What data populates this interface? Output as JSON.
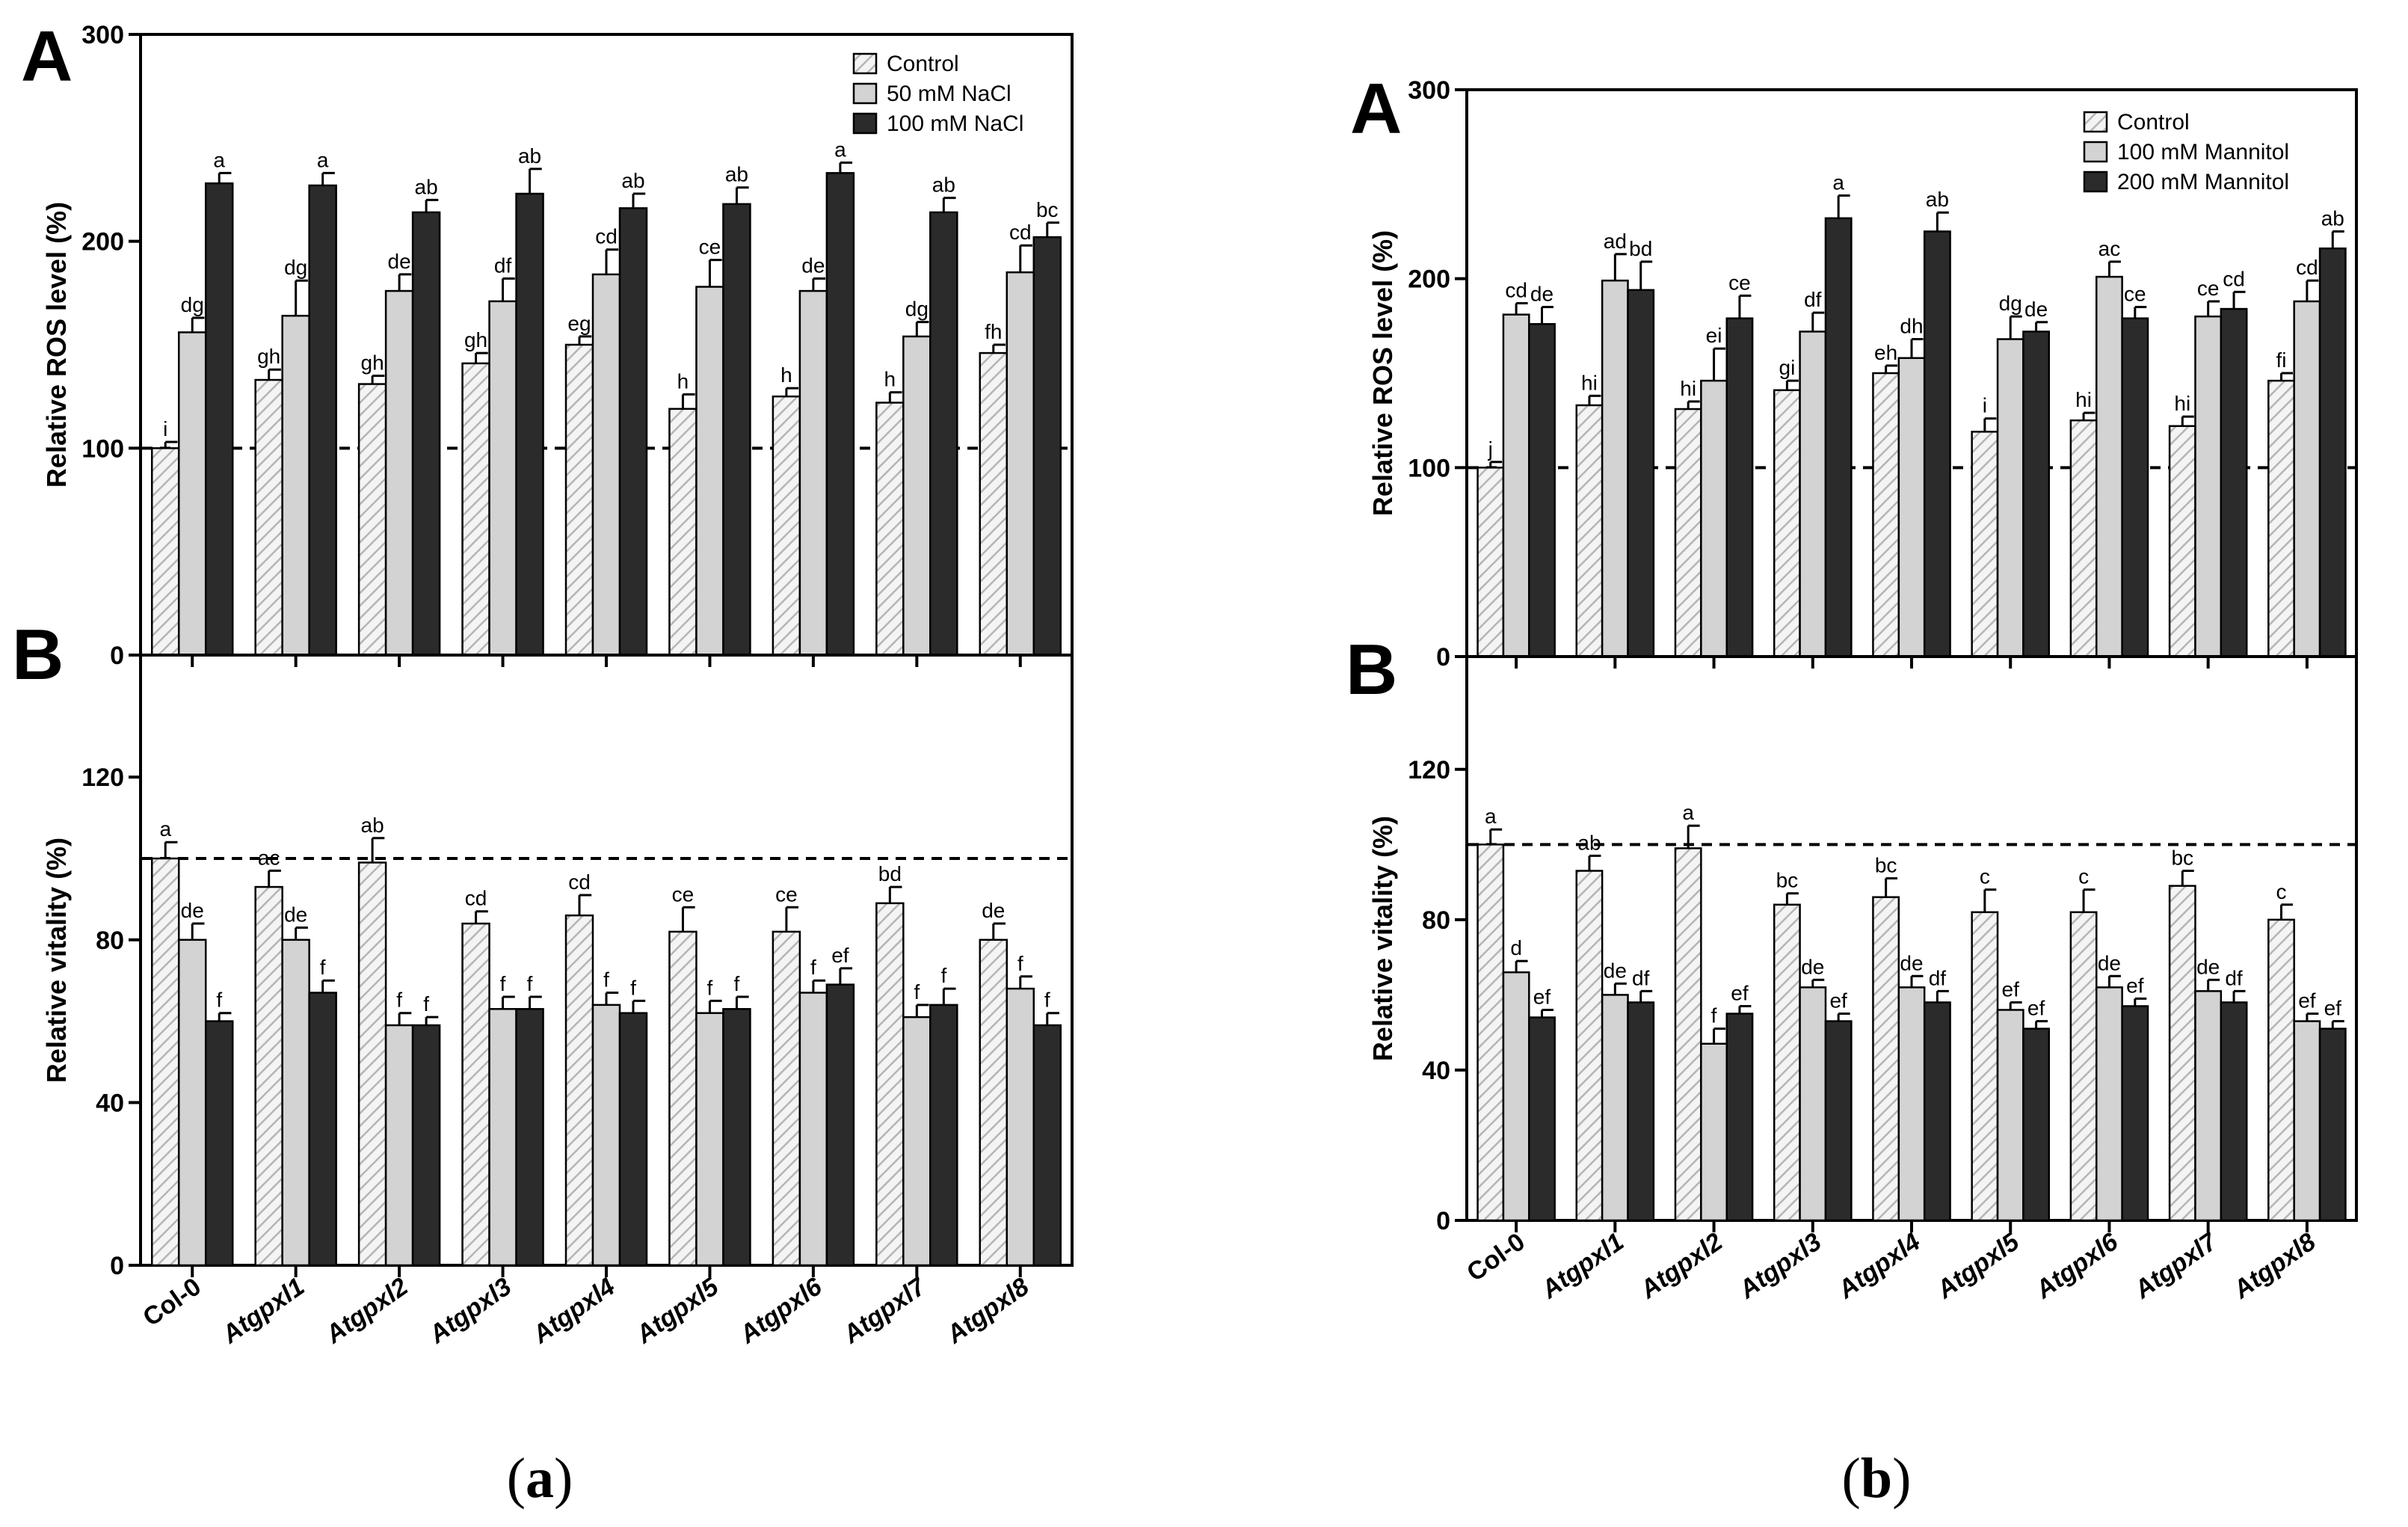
{
  "chart_data": [
    {
      "type": "bar",
      "panel": "A",
      "ylabel": "Relative ROS level (%)",
      "ylim": [
        0,
        300
      ],
      "yticks": [
        0,
        100,
        200,
        300
      ],
      "reference_line": 100,
      "categories": [
        "Col-0",
        "Atgpxl1",
        "Atgpxl2",
        "Atgpxl3",
        "Atgpxl4",
        "Atgpxl5",
        "Atgpxl6",
        "Atgpxl7",
        "Atgpxl8"
      ],
      "legend": [
        "Control",
        "50 mM NaCl",
        "100 mM NaCl"
      ],
      "series": [
        {
          "name": "Control",
          "values": [
            100,
            133,
            131,
            141,
            150,
            119,
            125,
            122,
            146
          ],
          "errors": [
            3,
            5,
            4,
            5,
            4,
            7,
            4,
            5,
            4
          ],
          "letters": [
            "i",
            "gh",
            "gh",
            "gh",
            "eg",
            "h",
            "h",
            "h",
            "fh"
          ]
        },
        {
          "name": "50 mM NaCl",
          "values": [
            156,
            164,
            176,
            171,
            184,
            178,
            176,
            154,
            185
          ],
          "errors": [
            7,
            17,
            8,
            11,
            12,
            13,
            6,
            7,
            13
          ],
          "letters": [
            "dg",
            "dg",
            "de",
            "df",
            "cd",
            "ce",
            "de",
            "dg",
            "cd"
          ]
        },
        {
          "name": "100 mM NaCl",
          "values": [
            228,
            227,
            214,
            223,
            216,
            218,
            233,
            214,
            202
          ],
          "errors": [
            5,
            6,
            6,
            12,
            7,
            8,
            5,
            7,
            7
          ],
          "letters": [
            "a",
            "a",
            "ab",
            "ab",
            "ab",
            "ab",
            "a",
            "ab",
            "bc"
          ]
        }
      ]
    },
    {
      "type": "bar",
      "panel": "B",
      "ylabel": "Relative vitality (%)",
      "ylim": [
        0,
        150
      ],
      "yticks": [
        0,
        40,
        80,
        120
      ],
      "reference_line": 100,
      "categories": [
        "Col-0",
        "Atgpxl1",
        "Atgpxl2",
        "Atgpxl3",
        "Atgpxl4",
        "Atgpxl5",
        "Atgpxl6",
        "Atgpxl7",
        "Atgpxl8"
      ],
      "legend": [
        "Control",
        "50 mM NaCl",
        "100 mM NaCl"
      ],
      "series": [
        {
          "name": "Control",
          "values": [
            100,
            93,
            99,
            84,
            86,
            82,
            82,
            89,
            80
          ],
          "errors": [
            4,
            4,
            6,
            3,
            5,
            6,
            6,
            4,
            4
          ],
          "letters": [
            "a",
            "ac",
            "ab",
            "cd",
            "cd",
            "ce",
            "ce",
            "bd",
            "de"
          ]
        },
        {
          "name": "50 mM NaCl",
          "values": [
            80,
            80,
            59,
            63,
            64,
            62,
            67,
            61,
            68
          ],
          "errors": [
            4,
            3,
            3,
            3,
            3,
            3,
            3,
            3,
            3
          ],
          "letters": [
            "de",
            "de",
            "f",
            "f",
            "f",
            "f",
            "f",
            "f",
            "f"
          ]
        },
        {
          "name": "100 mM NaCl",
          "values": [
            60,
            67,
            59,
            63,
            62,
            63,
            69,
            64,
            59
          ],
          "errors": [
            2,
            3,
            2,
            3,
            3,
            3,
            4,
            4,
            3
          ],
          "letters": [
            "f",
            "f",
            "f",
            "f",
            "f",
            "f",
            "ef",
            "f",
            "f"
          ]
        }
      ]
    },
    {
      "type": "bar",
      "panel": "A",
      "ylabel": "Relative ROS level (%)",
      "ylim": [
        0,
        300
      ],
      "yticks": [
        0,
        100,
        200,
        300
      ],
      "reference_line": 100,
      "categories": [
        "Col-0",
        "Atgpxl1",
        "Atgpxl2",
        "Atgpxl3",
        "Atgpxl4",
        "Atgpxl5",
        "Atgpxl6",
        "Atgpxl7",
        "Atgpxl8"
      ],
      "legend": [
        "Control",
        "100 mM Mannitol",
        "200 mM Mannitol"
      ],
      "series": [
        {
          "name": "Control",
          "values": [
            100,
            133,
            131,
            141,
            150,
            119,
            125,
            122,
            146
          ],
          "errors": [
            3,
            5,
            4,
            5,
            4,
            7,
            4,
            5,
            4
          ],
          "letters": [
            "j",
            "hi",
            "hi",
            "gi",
            "eh",
            "i",
            "hi",
            "hi",
            "fi"
          ]
        },
        {
          "name": "100 mM Mannitol",
          "values": [
            181,
            199,
            146,
            172,
            158,
            168,
            201,
            180,
            188
          ],
          "errors": [
            6,
            14,
            17,
            10,
            10,
            12,
            8,
            8,
            11
          ],
          "letters": [
            "cd",
            "ad",
            "ei",
            "df",
            "dh",
            "dg",
            "ac",
            "ce",
            "cd"
          ]
        },
        {
          "name": "200 mM Mannitol",
          "values": [
            176,
            194,
            179,
            232,
            225,
            172,
            179,
            184,
            216
          ],
          "errors": [
            9,
            15,
            12,
            12,
            10,
            5,
            6,
            9,
            9
          ],
          "letters": [
            "de",
            "bd",
            "ce",
            "a",
            "ab",
            "de",
            "ce",
            "cd",
            "ab"
          ]
        }
      ]
    },
    {
      "type": "bar",
      "panel": "B",
      "ylabel": "Relative vitality (%)",
      "ylim": [
        0,
        150
      ],
      "yticks": [
        0,
        40,
        80,
        120
      ],
      "reference_line": 100,
      "categories": [
        "Col-0",
        "Atgpxl1",
        "Atgpxl2",
        "Atgpxl3",
        "Atgpxl4",
        "Atgpxl5",
        "Atgpxl6",
        "Atgpxl7",
        "Atgpxl8"
      ],
      "legend": [
        "Control",
        "100 mM Mannitol",
        "200 mM Mannitol"
      ],
      "series": [
        {
          "name": "Control",
          "values": [
            100,
            93,
            99,
            84,
            86,
            82,
            82,
            89,
            80
          ],
          "errors": [
            4,
            4,
            6,
            3,
            5,
            6,
            6,
            4,
            4
          ],
          "letters": [
            "a",
            "ab",
            "a",
            "bc",
            "bc",
            "c",
            "c",
            "bc",
            "c"
          ]
        },
        {
          "name": "100 mM Mannitol",
          "values": [
            66,
            60,
            47,
            62,
            62,
            56,
            62,
            61,
            53
          ],
          "errors": [
            3,
            3,
            4,
            2,
            3,
            2,
            3,
            3,
            2
          ],
          "letters": [
            "d",
            "de",
            "f",
            "de",
            "de",
            "ef",
            "de",
            "de",
            "ef"
          ]
        },
        {
          "name": "200 mM Mannitol",
          "values": [
            54,
            58,
            55,
            53,
            58,
            51,
            57,
            58,
            51
          ],
          "errors": [
            2,
            3,
            2,
            2,
            3,
            2,
            2,
            3,
            2
          ],
          "letters": [
            "ef",
            "df",
            "ef",
            "ef",
            "df",
            "ef",
            "ef",
            "df",
            "ef"
          ]
        }
      ]
    }
  ],
  "captions": {
    "left": "(a)",
    "right": "(b)"
  },
  "colors": {
    "control": "#f2f2f2",
    "hatch": "#bdbdbd",
    "mid": "#d3d3d3",
    "high": "#2b2b2b"
  }
}
